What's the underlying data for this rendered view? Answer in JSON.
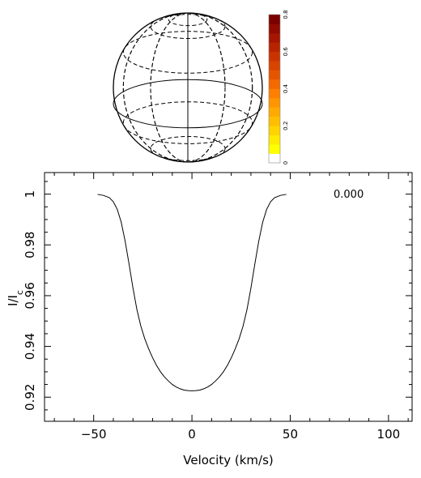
{
  "chart_data": [
    {
      "type": "heatmap",
      "description_role": "star surface map with color scale",
      "colorbar": {
        "ticks": [
          "0",
          "0.2",
          "0.4",
          "0.6",
          "0.8"
        ],
        "range": [
          0,
          0.8
        ],
        "colors": [
          "#ffffff",
          "#ffff00",
          "#ffea00",
          "#ffd400",
          "#ffbf00",
          "#ffaa00",
          "#ff9500",
          "#ff8000",
          "#f26a00",
          "#e55500",
          "#d84400",
          "#c93300",
          "#b82400",
          "#a61500",
          "#900a00",
          "#7a0000"
        ]
      },
      "star": {
        "latitude_lines": 5,
        "longitude_lines": 6,
        "spots": "none"
      }
    },
    {
      "type": "line",
      "annotation": "0.000",
      "xlabel": "Velocity (km/s)",
      "ylabel": "I/I_c",
      "xlim": [
        -75,
        112
      ],
      "ylim": [
        0.9105,
        1.0085
      ],
      "xticks": [
        -50,
        0,
        50,
        100
      ],
      "xtick_labels": [
        "−50",
        "0",
        "50",
        "100"
      ],
      "yticks": [
        0.92,
        0.94,
        0.96,
        0.98,
        1.0
      ],
      "ytick_labels": [
        "0.92",
        "0.94",
        "0.96",
        "0.98",
        "1"
      ],
      "series": [
        {
          "x": [
            -48,
            -45,
            -42,
            -40,
            -38,
            -36,
            -34,
            -32,
            -30,
            -28,
            -26,
            -24,
            -22,
            -20,
            -18,
            -16,
            -14,
            -12,
            -10,
            -8,
            -6,
            -4,
            -2,
            0,
            2,
            4,
            6,
            8,
            10,
            12,
            14,
            16,
            18,
            20,
            22,
            24,
            26,
            28,
            30,
            32,
            34,
            36,
            38,
            40,
            42,
            45,
            48
          ],
          "y": [
            0.9999,
            0.9995,
            0.9986,
            0.997,
            0.994,
            0.989,
            0.9815,
            0.9725,
            0.963,
            0.9545,
            0.948,
            0.943,
            0.939,
            0.9355,
            0.9325,
            0.93,
            0.928,
            0.9264,
            0.925,
            0.924,
            0.9233,
            0.9228,
            0.9226,
            0.9225,
            0.9226,
            0.9228,
            0.9233,
            0.924,
            0.925,
            0.9264,
            0.928,
            0.93,
            0.9325,
            0.9355,
            0.939,
            0.943,
            0.948,
            0.9545,
            0.963,
            0.9725,
            0.9815,
            0.989,
            0.994,
            0.997,
            0.9986,
            0.9995,
            0.9999
          ]
        }
      ]
    }
  ]
}
